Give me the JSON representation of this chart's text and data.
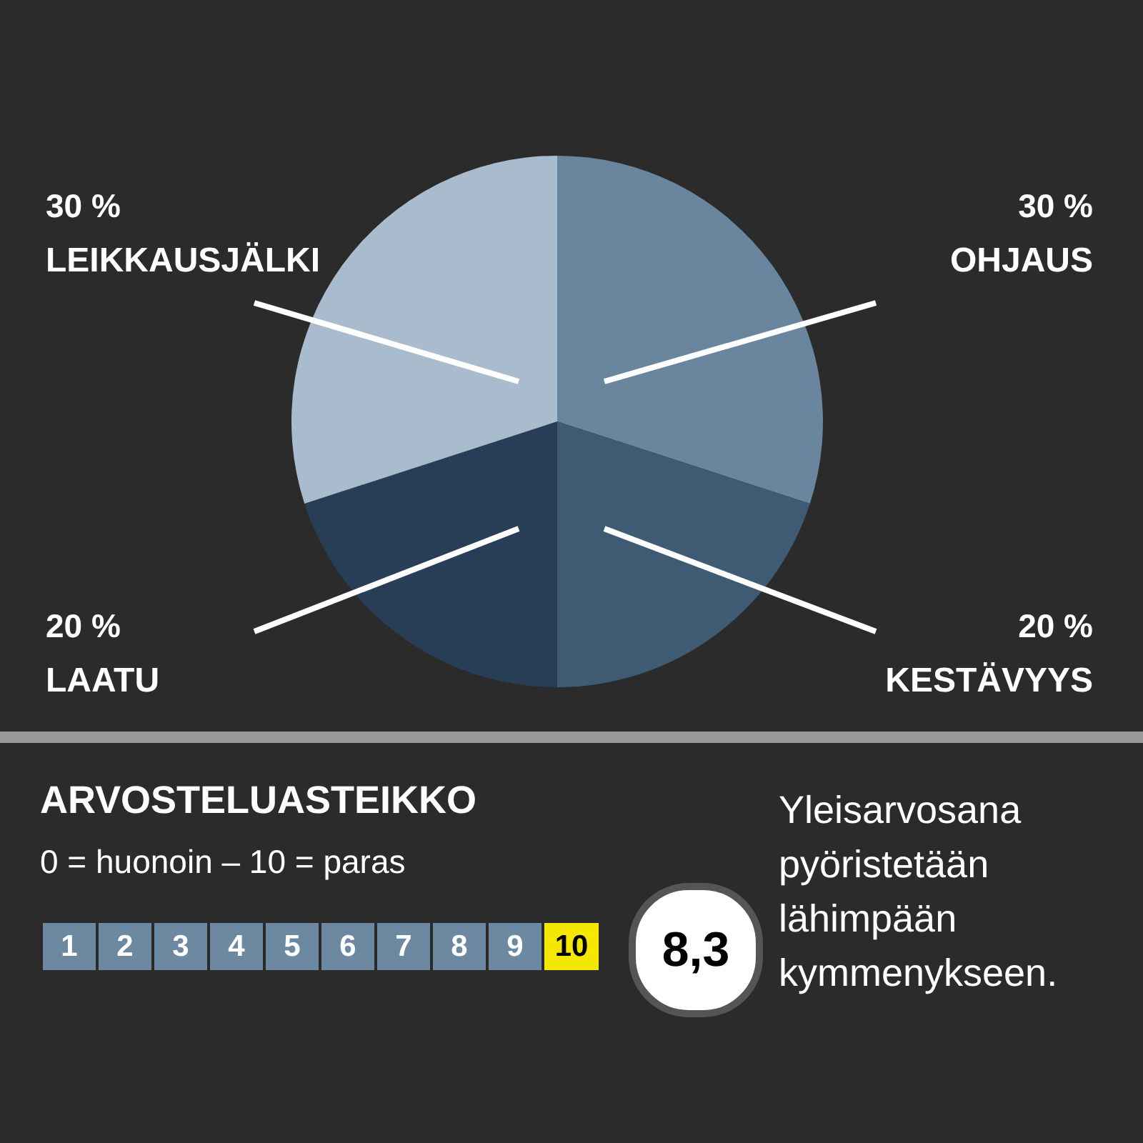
{
  "chart_data": {
    "type": "pie",
    "title": "ARVOSTELUASTEIKKO",
    "subtitle": "0 = huonoin – 10 = paras",
    "categories": [
      "OHJAUS",
      "KESTÄVYYS",
      "LAATU",
      "LEIKKAUSJÄLKI"
    ],
    "values": [
      30,
      20,
      20,
      30
    ],
    "value_labels": [
      "30 %",
      "20 %",
      "20 %",
      "30 %"
    ],
    "colors": [
      "#6a869e",
      "#3f5b73",
      "#283d56",
      "#a9bccd"
    ],
    "annotations": [
      "1",
      "2",
      "3",
      "4",
      "5",
      "6",
      "7",
      "8",
      "9",
      "10",
      "8,3",
      "Yleisarvosana pyöristetään lähimpään kymmenykseen."
    ]
  }
}
